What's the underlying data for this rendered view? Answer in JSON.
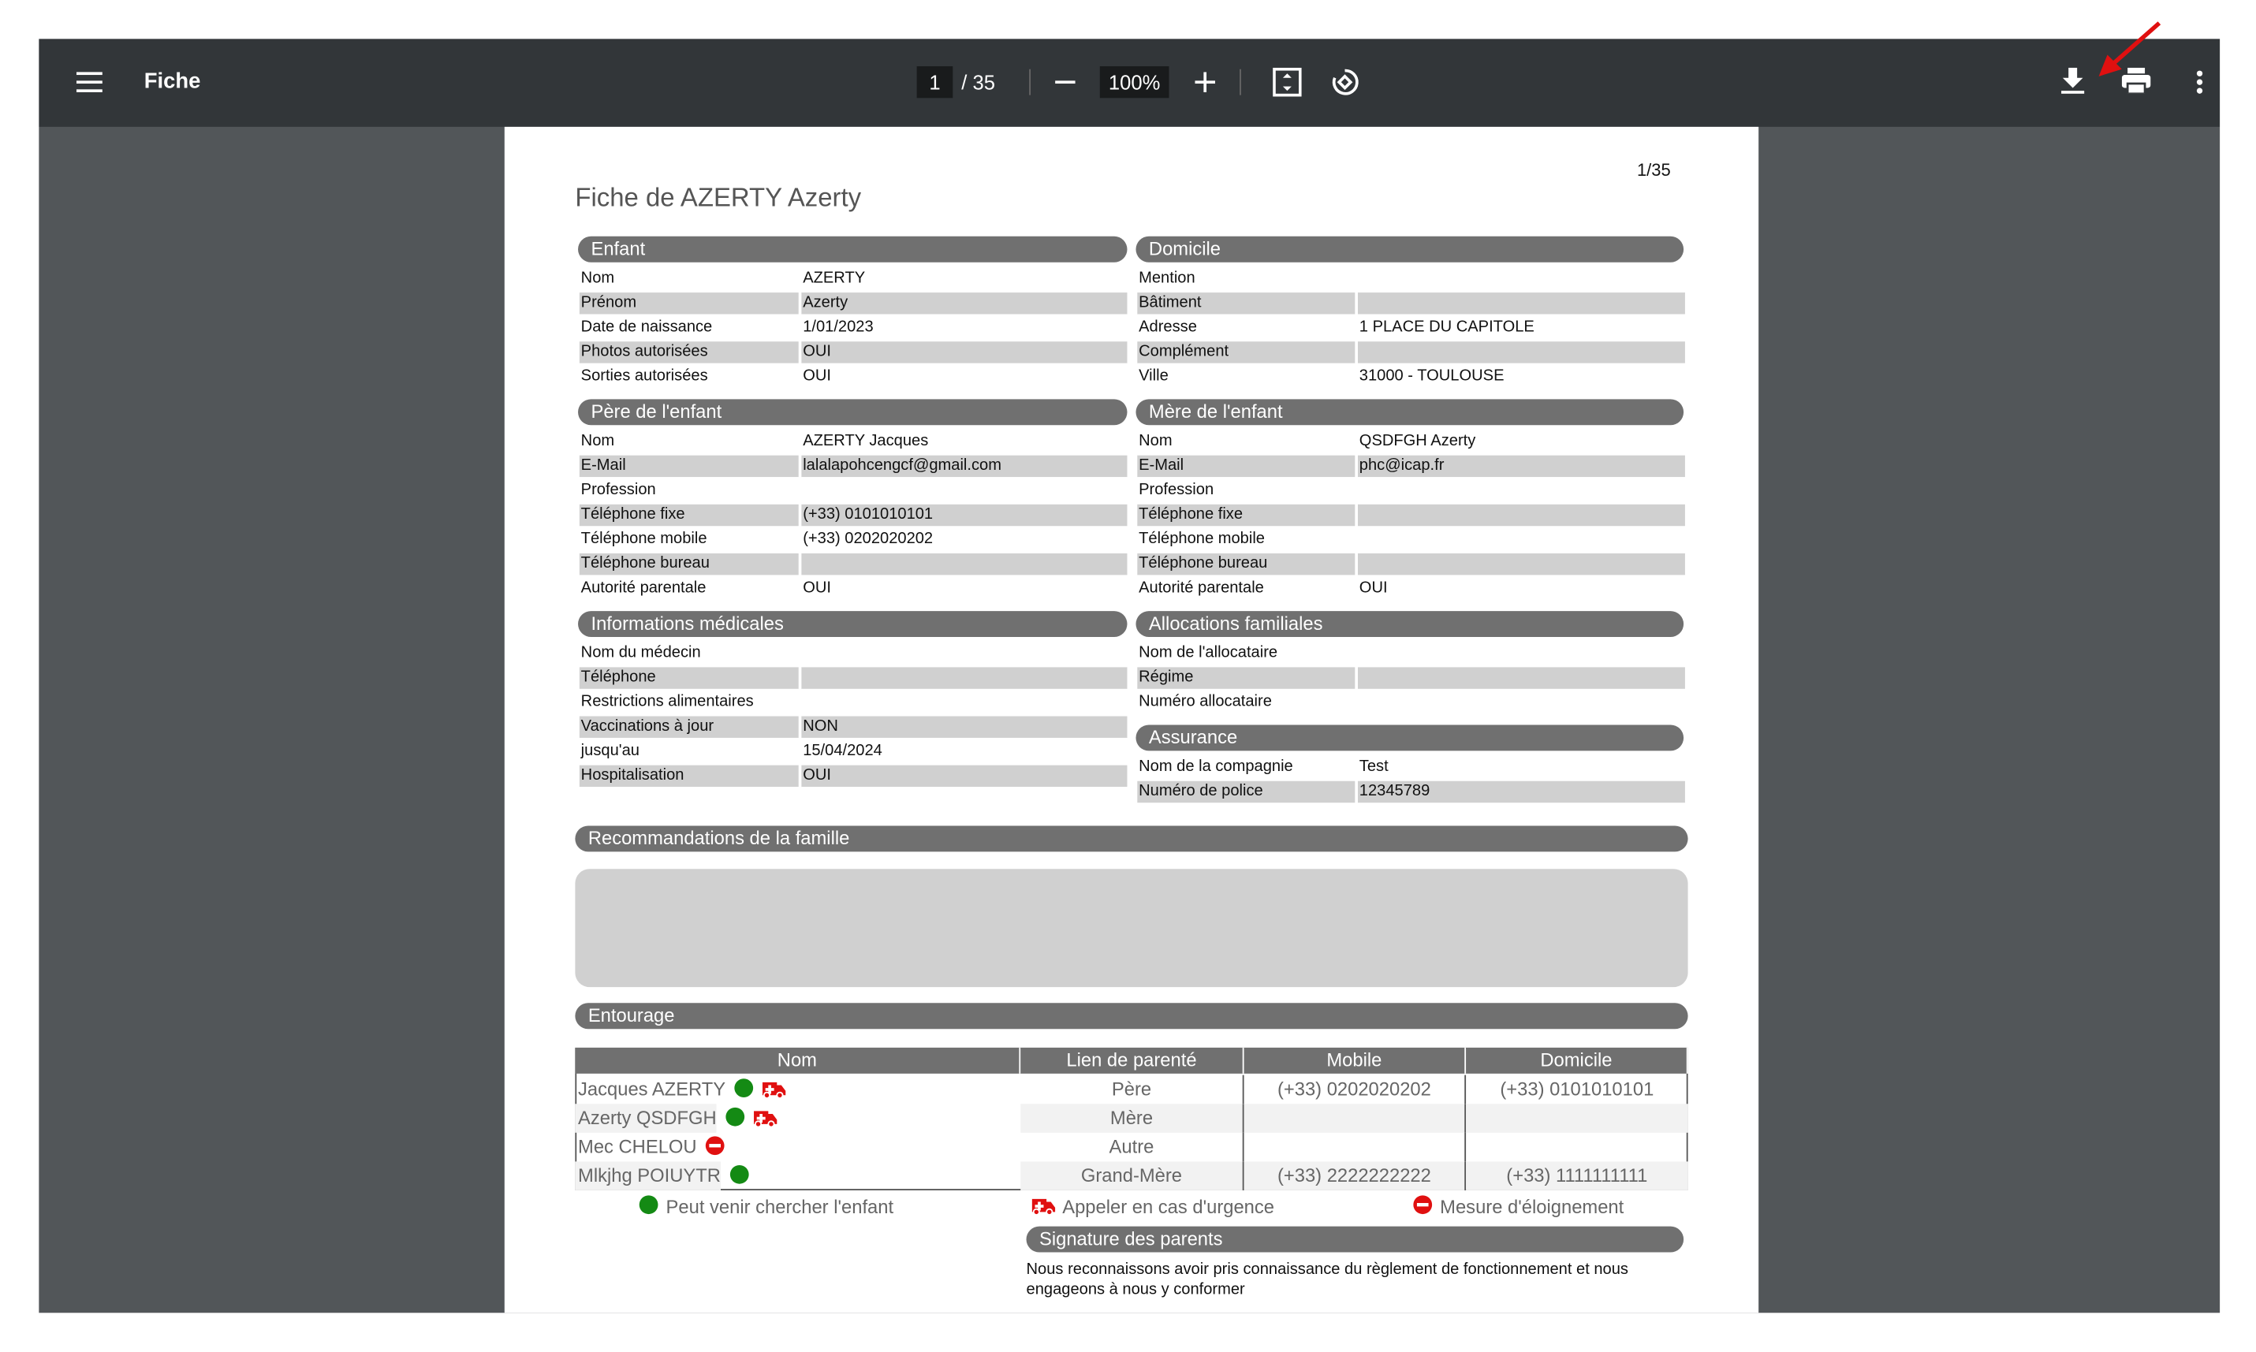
{
  "toolbar": {
    "title": "Fiche",
    "page": "1",
    "page_total": "/ 35",
    "zoom": "100%"
  },
  "document": {
    "page_label": "1/35",
    "title": "Fiche de AZERTY Azerty",
    "left_sections": [
      {
        "title": "Enfant",
        "rows": [
          {
            "label": "Nom",
            "value": "AZERTY"
          },
          {
            "label": "Prénom",
            "value": "Azerty"
          },
          {
            "label": "Date de naissance",
            "value": "1/01/2023"
          },
          {
            "label": "Photos autorisées",
            "value": "OUI"
          },
          {
            "label": "Sorties autorisées",
            "value": "OUI"
          }
        ]
      },
      {
        "title": "Père de l'enfant",
        "rows": [
          {
            "label": "Nom",
            "value": "AZERTY Jacques"
          },
          {
            "label": "E-Mail",
            "value": "lalalapohcengcf@gmail.com"
          },
          {
            "label": "Profession"
          },
          {
            "label": "Téléphone fixe",
            "value": "(+33) 0101010101"
          },
          {
            "label": "Téléphone mobile",
            "value": "(+33) 0202020202"
          },
          {
            "label": "Téléphone bureau"
          },
          {
            "label": "Autorité parentale",
            "value": "OUI"
          }
        ]
      },
      {
        "title": "Informations médicales",
        "rows": [
          {
            "label": "Nom du médecin"
          },
          {
            "label": "Téléphone"
          },
          {
            "label": "Restrictions alimentaires"
          },
          {
            "label": "Vaccinations à jour",
            "value": "NON"
          },
          {
            "label": "jusqu'au",
            "value": "15/04/2024"
          },
          {
            "label": "Hospitalisation",
            "value": "OUI"
          }
        ]
      }
    ],
    "right_sections": [
      {
        "title": "Domicile",
        "rows": [
          {
            "label": "Mention"
          },
          {
            "label": "Bâtiment"
          },
          {
            "label": "Adresse",
            "value": "1 PLACE DU CAPITOLE"
          },
          {
            "label": "Complément"
          },
          {
            "label": "Ville",
            "value": "31000 - TOULOUSE"
          }
        ]
      },
      {
        "title": "Mère de l'enfant",
        "rows": [
          {
            "label": "Nom",
            "value": "QSDFGH Azerty"
          },
          {
            "label": "E-Mail",
            "value": "phc@icap.fr"
          },
          {
            "label": "Profession"
          },
          {
            "label": "Téléphone fixe"
          },
          {
            "label": "Téléphone mobile"
          },
          {
            "label": "Téléphone bureau"
          },
          {
            "label": "Autorité parentale",
            "value": "OUI"
          }
        ]
      },
      {
        "title": "Allocations familiales",
        "rows": [
          {
            "label": "Nom de l'allocataire"
          },
          {
            "label": "Régime"
          },
          {
            "label": "Numéro allocataire"
          }
        ]
      },
      {
        "title": "Assurance",
        "rows": [
          {
            "label": "Nom de la compagnie",
            "value": "Test"
          },
          {
            "label": "Numéro de police",
            "value": "12345789"
          }
        ]
      }
    ],
    "recommendations": {
      "title": "Recommandations de la famille"
    },
    "entourage": {
      "title": "Entourage",
      "columns": [
        "Nom",
        "Lien de parenté",
        "Mobile",
        "Domicile"
      ],
      "rows": [
        {
          "name": "Jacques AZERTY",
          "relation": "Père",
          "mobile": "(+33) 0202020202",
          "home": "(+33) 0101010101"
        },
        {
          "name": "Azerty QSDFGH",
          "relation": "Mère"
        },
        {
          "name": "Mec CHELOU",
          "relation": "Autre"
        },
        {
          "name": "Mlkjhg POIUYTR",
          "relation": "Grand-Mère",
          "mobile": "(+33) 2222222222",
          "home": "(+33) 1111111111"
        }
      ]
    },
    "legend": [
      "Peut venir chercher l'enfant",
      "Appeler en cas d'urgence",
      "Mesure d'éloignement"
    ],
    "signature": {
      "title": "Signature des parents",
      "text": "Nous reconnaissons avoir pris connaissance du règlement de fonctionnement et nous engageons à nous y conformer"
    }
  }
}
